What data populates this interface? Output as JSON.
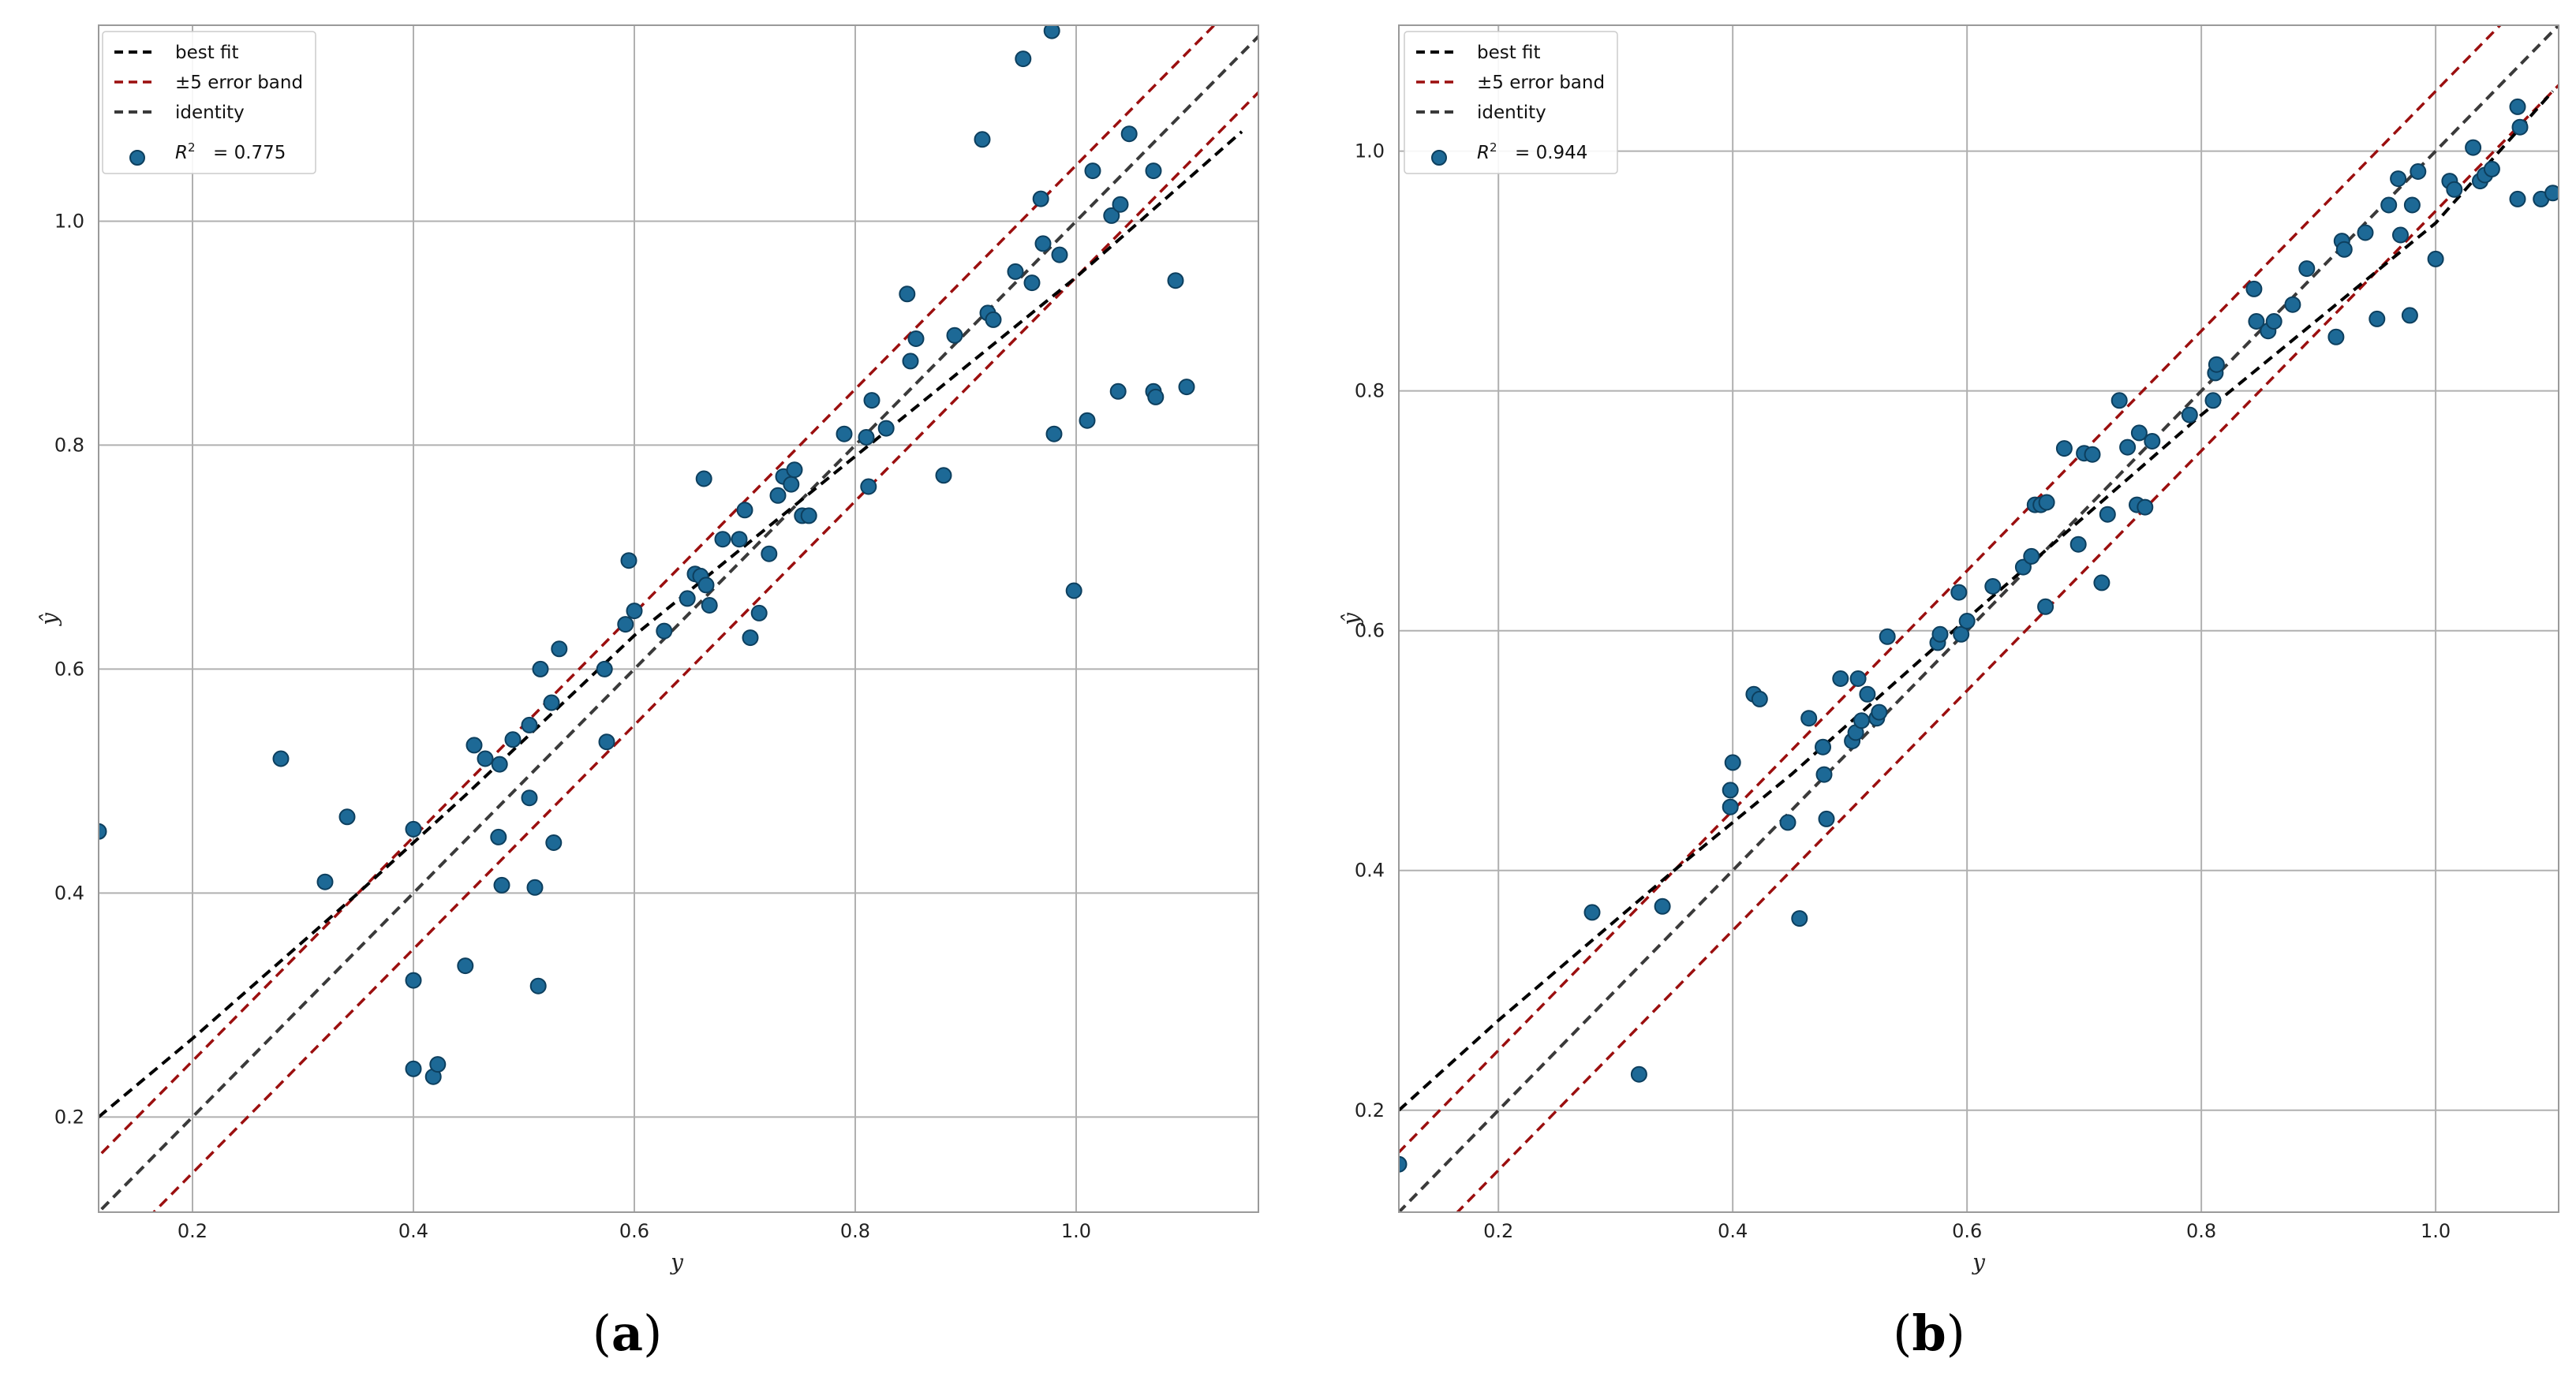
{
  "colors": {
    "best_fit": "#000000",
    "error_band": "#9b0f0f",
    "identity": "#3a3a3a",
    "points": "#1d6996",
    "point_edge": "#0d3f5e",
    "grid": "#b0b0b0",
    "frame": "#9a9a9a"
  },
  "legend_labels": {
    "best_fit": "best fit",
    "error_band": "±5 error band",
    "identity": "identity"
  },
  "chart_data": [
    {
      "panel": "(a)",
      "type": "scatter",
      "xlabel": "y",
      "ylabel": "ŷ",
      "xlim": [
        0.115,
        1.165
      ],
      "ylim": [
        0.115,
        1.175
      ],
      "xticks": [
        0.2,
        0.4,
        0.6,
        0.8,
        1.0
      ],
      "xtick_labels": [
        "0.2",
        "0.4",
        "0.6",
        "0.8",
        "1.0"
      ],
      "yticks": [
        0.2,
        0.4,
        0.6,
        0.8,
        1.0
      ],
      "ytick_labels": [
        "0.2",
        "0.4",
        "0.6",
        "0.8",
        "1.0"
      ],
      "grid": true,
      "r2_label": "= 0.775",
      "error_band": 0.05,
      "best_fit": [
        [
          0.115,
          0.2
        ],
        [
          0.2,
          0.27
        ],
        [
          0.35,
          0.4
        ],
        [
          0.45,
          0.49
        ],
        [
          0.6,
          0.63
        ],
        [
          0.8,
          0.79
        ],
        [
          1.0,
          0.95
        ],
        [
          1.15,
          1.08
        ]
      ],
      "points": [
        [
          0.115,
          0.455
        ],
        [
          0.28,
          0.52
        ],
        [
          0.32,
          0.41
        ],
        [
          0.34,
          0.468
        ],
        [
          0.4,
          0.457
        ],
        [
          0.4,
          0.322
        ],
        [
          0.4,
          0.243
        ],
        [
          0.418,
          0.236
        ],
        [
          0.422,
          0.247
        ],
        [
          0.447,
          0.335
        ],
        [
          0.455,
          0.532
        ],
        [
          0.465,
          0.52
        ],
        [
          0.477,
          0.45
        ],
        [
          0.48,
          0.407
        ],
        [
          0.478,
          0.515
        ],
        [
          0.49,
          0.537
        ],
        [
          0.505,
          0.55
        ],
        [
          0.505,
          0.485
        ],
        [
          0.51,
          0.405
        ],
        [
          0.513,
          0.317
        ],
        [
          0.515,
          0.6
        ],
        [
          0.525,
          0.57
        ],
        [
          0.527,
          0.445
        ],
        [
          0.532,
          0.618
        ],
        [
          0.573,
          0.6
        ],
        [
          0.575,
          0.535
        ],
        [
          0.592,
          0.64
        ],
        [
          0.595,
          0.697
        ],
        [
          0.6,
          0.652
        ],
        [
          0.627,
          0.634
        ],
        [
          0.648,
          0.663
        ],
        [
          0.655,
          0.685
        ],
        [
          0.66,
          0.683
        ],
        [
          0.663,
          0.77
        ],
        [
          0.665,
          0.675
        ],
        [
          0.668,
          0.657
        ],
        [
          0.68,
          0.716
        ],
        [
          0.695,
          0.716
        ],
        [
          0.7,
          0.742
        ],
        [
          0.705,
          0.628
        ],
        [
          0.713,
          0.65
        ],
        [
          0.722,
          0.703
        ],
        [
          0.73,
          0.755
        ],
        [
          0.735,
          0.772
        ],
        [
          0.742,
          0.765
        ],
        [
          0.745,
          0.778
        ],
        [
          0.752,
          0.737
        ],
        [
          0.758,
          0.737
        ],
        [
          0.79,
          0.81
        ],
        [
          0.81,
          0.807
        ],
        [
          0.812,
          0.763
        ],
        [
          0.815,
          0.84
        ],
        [
          0.828,
          0.815
        ],
        [
          0.847,
          0.935
        ],
        [
          0.85,
          0.875
        ],
        [
          0.855,
          0.895
        ],
        [
          0.88,
          0.773
        ],
        [
          0.89,
          0.898
        ],
        [
          0.915,
          1.073
        ],
        [
          0.92,
          0.918
        ],
        [
          0.925,
          0.912
        ],
        [
          0.945,
          0.955
        ],
        [
          0.952,
          1.145
        ],
        [
          0.96,
          0.945
        ],
        [
          0.968,
          1.02
        ],
        [
          0.97,
          0.98
        ],
        [
          0.978,
          1.17
        ],
        [
          0.98,
          0.81
        ],
        [
          0.985,
          0.97
        ],
        [
          0.998,
          0.67
        ],
        [
          1.01,
          0.822
        ],
        [
          1.015,
          1.045
        ],
        [
          1.032,
          1.005
        ],
        [
          1.038,
          0.848
        ],
        [
          1.04,
          1.015
        ],
        [
          1.048,
          1.078
        ],
        [
          1.07,
          0.848
        ],
        [
          1.07,
          1.045
        ],
        [
          1.072,
          0.843
        ],
        [
          1.09,
          0.947
        ],
        [
          1.1,
          0.852
        ]
      ]
    },
    {
      "panel": "(b)",
      "type": "scatter",
      "xlabel": "y",
      "ylabel": "ŷ",
      "xlim": [
        0.115,
        1.105
      ],
      "ylim": [
        0.115,
        1.105
      ],
      "xticks": [
        0.2,
        0.4,
        0.6,
        0.8,
        1.0
      ],
      "xtick_labels": [
        "0.2",
        "0.4",
        "0.6",
        "0.8",
        "1.0"
      ],
      "yticks": [
        0.2,
        0.4,
        0.6,
        0.8,
        1.0
      ],
      "ytick_labels": [
        "0.2",
        "0.4",
        "0.6",
        "0.8",
        "1.0"
      ],
      "grid": true,
      "r2_label": "= 0.944",
      "error_band": 0.05,
      "best_fit": [
        [
          0.115,
          0.2
        ],
        [
          0.2,
          0.275
        ],
        [
          0.35,
          0.4
        ],
        [
          0.45,
          0.48
        ],
        [
          0.6,
          0.61
        ],
        [
          0.8,
          0.78
        ],
        [
          1.0,
          0.94
        ],
        [
          1.1,
          1.05
        ]
      ],
      "points": [
        [
          0.115,
          0.155
        ],
        [
          0.28,
          0.365
        ],
        [
          0.32,
          0.23
        ],
        [
          0.34,
          0.37
        ],
        [
          0.398,
          0.453
        ],
        [
          0.398,
          0.467
        ],
        [
          0.4,
          0.49
        ],
        [
          0.418,
          0.547
        ],
        [
          0.423,
          0.543
        ],
        [
          0.447,
          0.44
        ],
        [
          0.457,
          0.36
        ],
        [
          0.465,
          0.527
        ],
        [
          0.477,
          0.503
        ],
        [
          0.478,
          0.48
        ],
        [
          0.48,
          0.443
        ],
        [
          0.492,
          0.56
        ],
        [
          0.502,
          0.508
        ],
        [
          0.505,
          0.515
        ],
        [
          0.507,
          0.56
        ],
        [
          0.51,
          0.525
        ],
        [
          0.515,
          0.547
        ],
        [
          0.523,
          0.527
        ],
        [
          0.525,
          0.532
        ],
        [
          0.532,
          0.595
        ],
        [
          0.575,
          0.59
        ],
        [
          0.577,
          0.597
        ],
        [
          0.593,
          0.632
        ],
        [
          0.595,
          0.597
        ],
        [
          0.6,
          0.608
        ],
        [
          0.622,
          0.637
        ],
        [
          0.648,
          0.653
        ],
        [
          0.655,
          0.662
        ],
        [
          0.658,
          0.705
        ],
        [
          0.663,
          0.705
        ],
        [
          0.667,
          0.62
        ],
        [
          0.668,
          0.707
        ],
        [
          0.683,
          0.752
        ],
        [
          0.695,
          0.672
        ],
        [
          0.7,
          0.748
        ],
        [
          0.707,
          0.747
        ],
        [
          0.715,
          0.64
        ],
        [
          0.72,
          0.697
        ],
        [
          0.73,
          0.792
        ],
        [
          0.737,
          0.753
        ],
        [
          0.745,
          0.705
        ],
        [
          0.747,
          0.765
        ],
        [
          0.752,
          0.703
        ],
        [
          0.758,
          0.758
        ],
        [
          0.79,
          0.78
        ],
        [
          0.81,
          0.792
        ],
        [
          0.812,
          0.815
        ],
        [
          0.813,
          0.822
        ],
        [
          0.845,
          0.885
        ],
        [
          0.847,
          0.858
        ],
        [
          0.857,
          0.85
        ],
        [
          0.862,
          0.858
        ],
        [
          0.878,
          0.872
        ],
        [
          0.89,
          0.902
        ],
        [
          0.915,
          0.845
        ],
        [
          0.92,
          0.925
        ],
        [
          0.922,
          0.918
        ],
        [
          0.94,
          0.932
        ],
        [
          0.95,
          0.86
        ],
        [
          0.96,
          0.955
        ],
        [
          0.968,
          0.977
        ],
        [
          0.97,
          0.93
        ],
        [
          0.978,
          0.863
        ],
        [
          0.98,
          0.955
        ],
        [
          0.985,
          0.983
        ],
        [
          1.0,
          0.91
        ],
        [
          1.012,
          0.975
        ],
        [
          1.016,
          0.968
        ],
        [
          1.032,
          1.003
        ],
        [
          1.038,
          0.975
        ],
        [
          1.042,
          0.98
        ],
        [
          1.048,
          0.985
        ],
        [
          1.07,
          1.037
        ],
        [
          1.07,
          0.96
        ],
        [
          1.072,
          1.02
        ],
        [
          1.09,
          0.96
        ],
        [
          1.1,
          0.965
        ]
      ]
    }
  ],
  "panel_labels": {
    "a": {
      "open": "(",
      "letter": "a",
      "close": ")"
    },
    "b": {
      "open": "(",
      "letter": "b",
      "close": ")"
    }
  }
}
